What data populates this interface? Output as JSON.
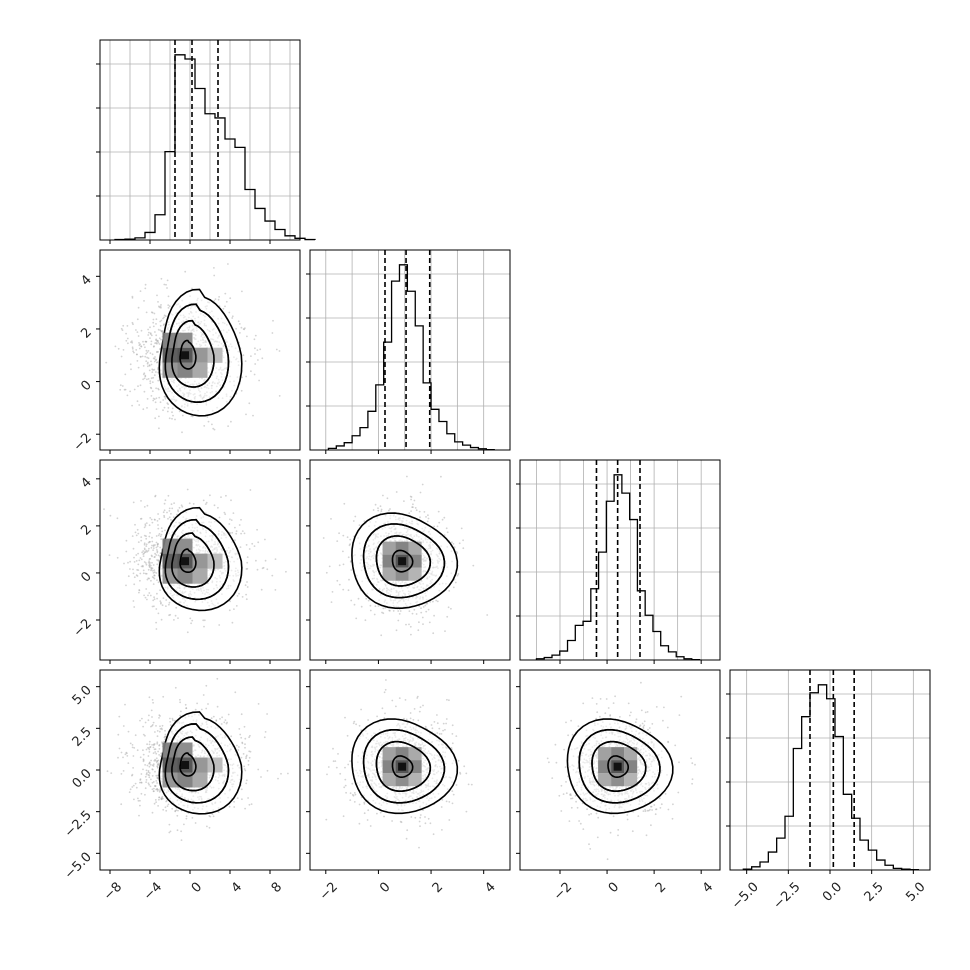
{
  "chart_data": {
    "type": "corner",
    "n_params": 4,
    "grid": true,
    "quantile_lines": "dashed",
    "colors": {
      "line": "#000000",
      "grid": "#b0b0b0",
      "points": "#a8a8a8",
      "frame": "#000000"
    },
    "params": [
      {
        "range": [
          -9,
          11
        ],
        "ticks": [
          "−8",
          "−4",
          "0",
          "4",
          "8"
        ],
        "tick_values": [
          -8,
          -4,
          0,
          4,
          8
        ],
        "grid_values": [
          -8,
          -6,
          -4,
          -2,
          0,
          2,
          4,
          6,
          8,
          10
        ],
        "quantiles": [
          -1.5,
          0.2,
          2.8
        ],
        "mean": 0.5,
        "sd": 2.3,
        "hist": {
          "start": -7.5,
          "width": 1.0,
          "counts": [
            1,
            2,
            5,
            18,
            60,
            210,
            440,
            430,
            360,
            300,
            290,
            240,
            220,
            120,
            75,
            45,
            25,
            10,
            4,
            1
          ]
        }
      },
      {
        "range": [
          -2.6,
          5.0
        ],
        "ticks": [
          "−2",
          "0",
          "2",
          "4"
        ],
        "tick_values": [
          -2,
          0,
          2,
          4
        ],
        "grid_values": [
          -2,
          -1,
          0,
          1,
          2,
          3,
          4
        ],
        "quantiles": [
          0.25,
          1.05,
          1.95
        ],
        "mean": 1.0,
        "sd": 0.85,
        "hist": {
          "start": -1.9,
          "width": 0.3,
          "counts": [
            4,
            10,
            18,
            35,
            55,
            95,
            160,
            265,
            415,
            455,
            390,
            305,
            165,
            100,
            70,
            40,
            20,
            12,
            6,
            3,
            1
          ]
        }
      },
      {
        "range": [
          -3.7,
          4.8
        ],
        "ticks": [
          "−2",
          "0",
          "2",
          "4"
        ],
        "tick_values": [
          -2,
          0,
          2,
          4
        ],
        "grid_values": [
          -3,
          -2,
          -1,
          0,
          1,
          2,
          3,
          4
        ],
        "quantiles": [
          -0.45,
          0.45,
          1.4
        ],
        "mean": 0.5,
        "sd": 0.95,
        "hist": {
          "start": -3.0,
          "width": 0.33,
          "counts": [
            3,
            6,
            12,
            22,
            48,
            85,
            95,
            175,
            265,
            390,
            455,
            410,
            345,
            170,
            110,
            70,
            35,
            20,
            8,
            3,
            1
          ]
        }
      },
      {
        "range": [
          -6.0,
          6.0
        ],
        "ticks": [
          "−5.0",
          "−2.5",
          "0.0",
          "2.5",
          "5.0"
        ],
        "tick_values": [
          -5.0,
          -2.5,
          0.0,
          2.5,
          5.0
        ],
        "grid_values": [
          -5,
          -2.5,
          0,
          2.5,
          5
        ],
        "quantiles": [
          -1.2,
          0.2,
          1.45
        ],
        "mean": 0.2,
        "sd": 1.35,
        "hist": {
          "start": -5.2,
          "width": 0.5,
          "counts": [
            2,
            8,
            20,
            45,
            80,
            135,
            305,
            385,
            445,
            465,
            430,
            335,
            190,
            130,
            75,
            50,
            25,
            12,
            4,
            2,
            1
          ]
        }
      }
    ],
    "pairs": [
      {
        "row": 1,
        "col": 0,
        "center": [
          -0.5,
          1.0
        ],
        "spread": [
          2.4,
          1.1
        ],
        "shape": "skew"
      },
      {
        "row": 2,
        "col": 0,
        "center": [
          -0.5,
          0.5
        ],
        "spread": [
          2.4,
          1.0
        ],
        "shape": "skew"
      },
      {
        "row": 2,
        "col": 1,
        "center": [
          0.9,
          0.5
        ],
        "spread": [
          0.85,
          1.0
        ],
        "shape": "round"
      },
      {
        "row": 3,
        "col": 0,
        "center": [
          -0.5,
          0.3
        ],
        "spread": [
          2.4,
          1.4
        ],
        "shape": "skew"
      },
      {
        "row": 3,
        "col": 1,
        "center": [
          0.9,
          0.2
        ],
        "spread": [
          0.85,
          1.4
        ],
        "shape": "round"
      },
      {
        "row": 3,
        "col": 2,
        "center": [
          0.45,
          0.2
        ],
        "spread": [
          0.95,
          1.4
        ],
        "shape": "round"
      }
    ]
  }
}
